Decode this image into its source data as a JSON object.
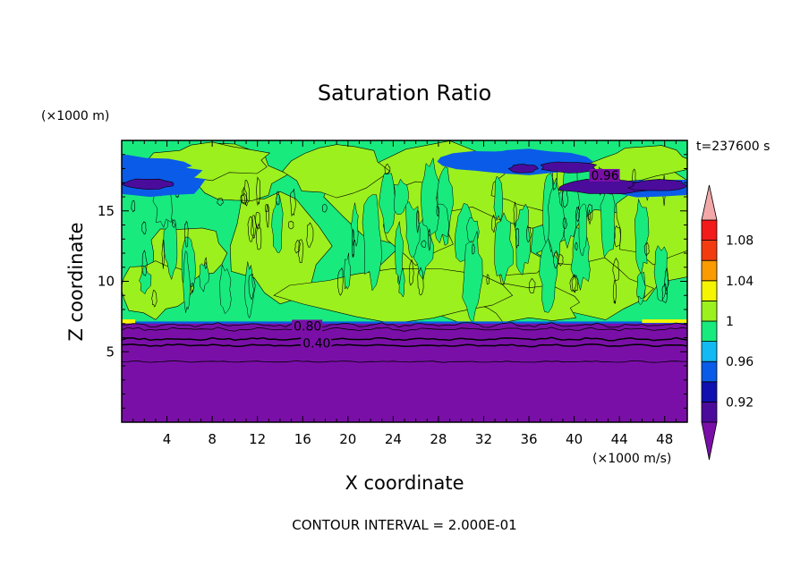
{
  "chart_data": {
    "type": "heatmap",
    "title": "Saturation Ratio",
    "xlabel": "X coordinate",
    "ylabel": "Z coordinate",
    "x_unit": "(×1000 m/s)",
    "y_unit": "(×1000 m)",
    "time_label": "t=237600 s",
    "footer": "CONTOUR INTERVAL = 2.000E-01",
    "xlim": [
      0,
      50
    ],
    "ylim": [
      0,
      20
    ],
    "x_ticks": [
      4,
      8,
      12,
      16,
      20,
      24,
      28,
      32,
      36,
      40,
      44,
      48
    ],
    "y_ticks": [
      5,
      10,
      15
    ],
    "contour_labels": [
      {
        "text": "0.80",
        "x": 15.2,
        "z": 6.7
      },
      {
        "text": "0.40",
        "x": 16.0,
        "z": 5.5
      },
      {
        "text": "0.96",
        "x": 41.5,
        "z": 17.4
      }
    ],
    "colorbar": {
      "levels": [
        0.9,
        0.92,
        0.94,
        0.96,
        0.98,
        1.0,
        1.02,
        1.04,
        1.06,
        1.08,
        1.1
      ],
      "tick_labels": [
        "0.92",
        "0.96",
        "1",
        "1.04",
        "1.08"
      ],
      "tick_values": [
        0.92,
        0.96,
        1.0,
        1.04,
        1.08
      ],
      "under_color": "#7a0fa8",
      "over_color": "#f2a8a8",
      "colors": [
        "#4b0c9c",
        "#1010b0",
        "#0a5be8",
        "#12b9f2",
        "#19ea7e",
        "#9cf01e",
        "#f5f500",
        "#fa9c00",
        "#f23c10",
        "#f21a1a"
      ]
    },
    "colors": {
      "deep_violet": "#7a0fa8",
      "dark_violet": "#4b0c9c",
      "cyan_green": "#19ea7e",
      "yellow_green": "#9cf01e",
      "blue": "#0a5be8",
      "yellow": "#f5f500"
    }
  }
}
